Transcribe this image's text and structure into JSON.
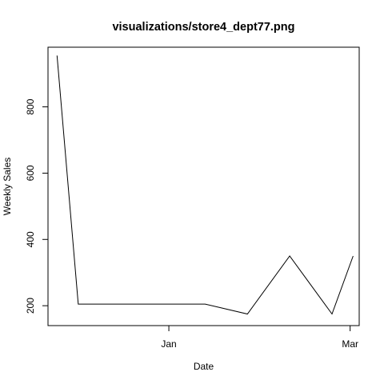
{
  "chart_data": {
    "type": "line",
    "title": "visualizations/store4_dept77.png",
    "xlabel": "Date",
    "ylabel": "Weekly Sales",
    "x": [
      "2011-11-25",
      "2011-12-02",
      "2012-01-13",
      "2012-01-27",
      "2012-02-10",
      "2012-02-24",
      "2012-03-02"
    ],
    "series": [
      {
        "values": [
          955,
          205,
          205,
          175,
          350,
          175,
          350
        ]
      }
    ],
    "xlim": [
      "2011-11-22",
      "2012-03-04"
    ],
    "ylim": [
      140,
      980
    ],
    "x_ticks": [
      {
        "date": "2012-01-01",
        "label": "Jan"
      },
      {
        "date": "2012-03-01",
        "label": "Mar"
      }
    ],
    "y_ticks": [
      200,
      400,
      600,
      800
    ],
    "grid": false,
    "line_color": "#000000"
  }
}
